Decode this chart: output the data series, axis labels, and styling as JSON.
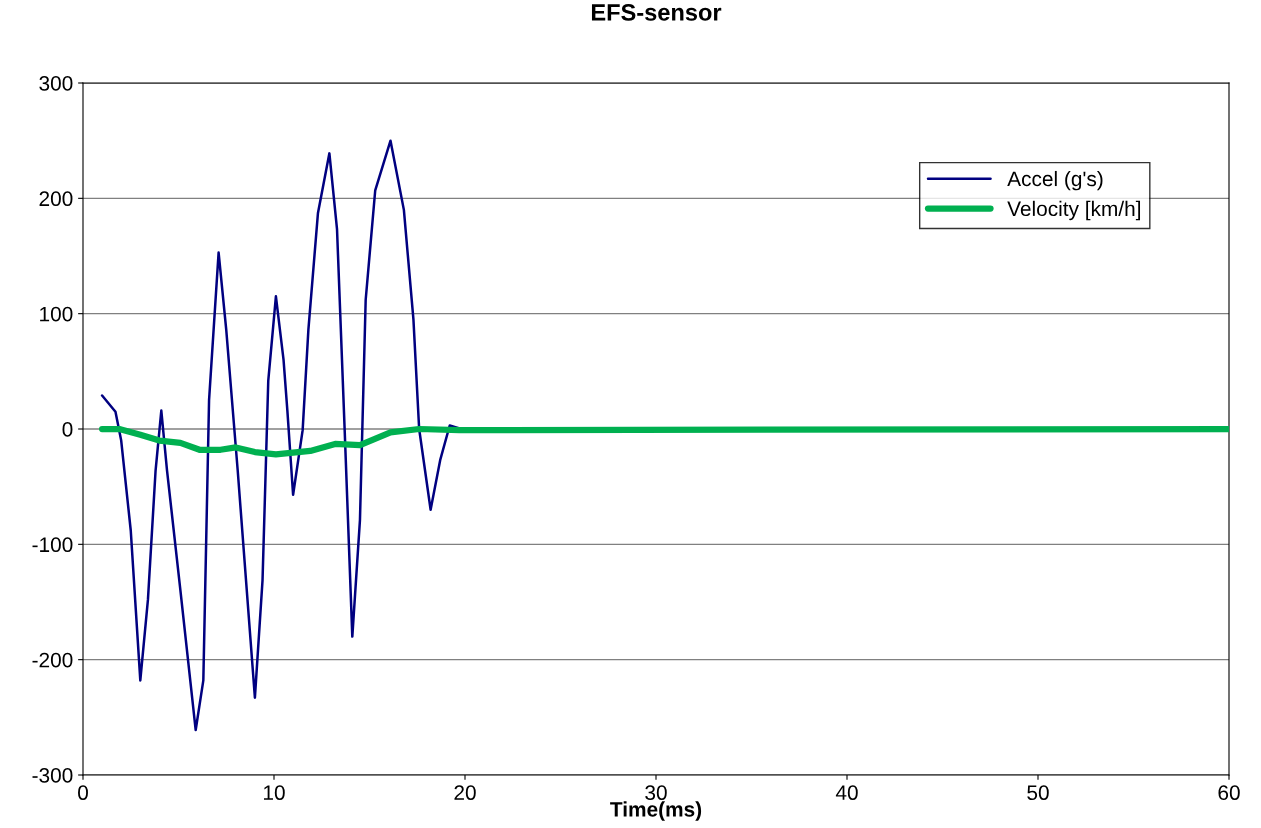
{
  "chart_data": {
    "type": "line",
    "title": "EFS-sensor",
    "xlabel": "Time(ms)",
    "xlim": [
      0,
      60
    ],
    "xticks": [
      0,
      10,
      20,
      30,
      40,
      50,
      60
    ],
    "ylim": [
      -300,
      300
    ],
    "yticks": [
      -300,
      -200,
      -100,
      0,
      100,
      200,
      300
    ],
    "grid": "y",
    "legend": "top right",
    "marker": "none",
    "line_style": "solid",
    "series": [
      {
        "name": "Accel (g's)",
        "color": "#000080",
        "x": [
          1.0,
          1.7,
          2.0,
          2.5,
          3.0,
          3.4,
          3.8,
          4.1,
          4.4,
          5.1,
          5.9,
          6.3,
          6.6,
          7.1,
          7.5,
          8.1,
          9.0,
          9.4,
          9.7,
          10.1,
          10.5,
          10.7,
          11.0,
          11.5,
          11.8,
          12.3,
          12.9,
          13.3,
          13.7,
          14.1,
          14.5,
          14.8,
          15.3,
          16.1,
          16.8,
          17.3,
          17.6,
          18.2,
          18.7,
          19.2,
          19.8,
          60
        ],
        "values": [
          29,
          15,
          -10,
          -88,
          -218,
          -148,
          -36,
          16,
          -36,
          -140,
          -261,
          -218,
          25,
          153,
          86,
          -36,
          -233,
          -131,
          42,
          115,
          60,
          16,
          -57,
          -1,
          86,
          187,
          239,
          173,
          -1,
          -180,
          -79,
          112,
          207,
          250,
          190,
          95,
          0,
          -70,
          -27,
          3,
          0,
          0
        ]
      },
      {
        "name": "Velocity [km/h]",
        "color": "#00b050",
        "x": [
          1.0,
          1.9,
          3.0,
          4.0,
          5.1,
          6.1,
          7.2,
          8.0,
          9.0,
          10.1,
          11.9,
          13.2,
          14.5,
          16.1,
          17.6,
          19.7,
          60
        ],
        "values": [
          0,
          0,
          -5,
          -10,
          -12,
          -18,
          -18,
          -16,
          -20,
          -22,
          -19,
          -13,
          -14,
          -3,
          0,
          -1,
          0
        ]
      }
    ]
  }
}
